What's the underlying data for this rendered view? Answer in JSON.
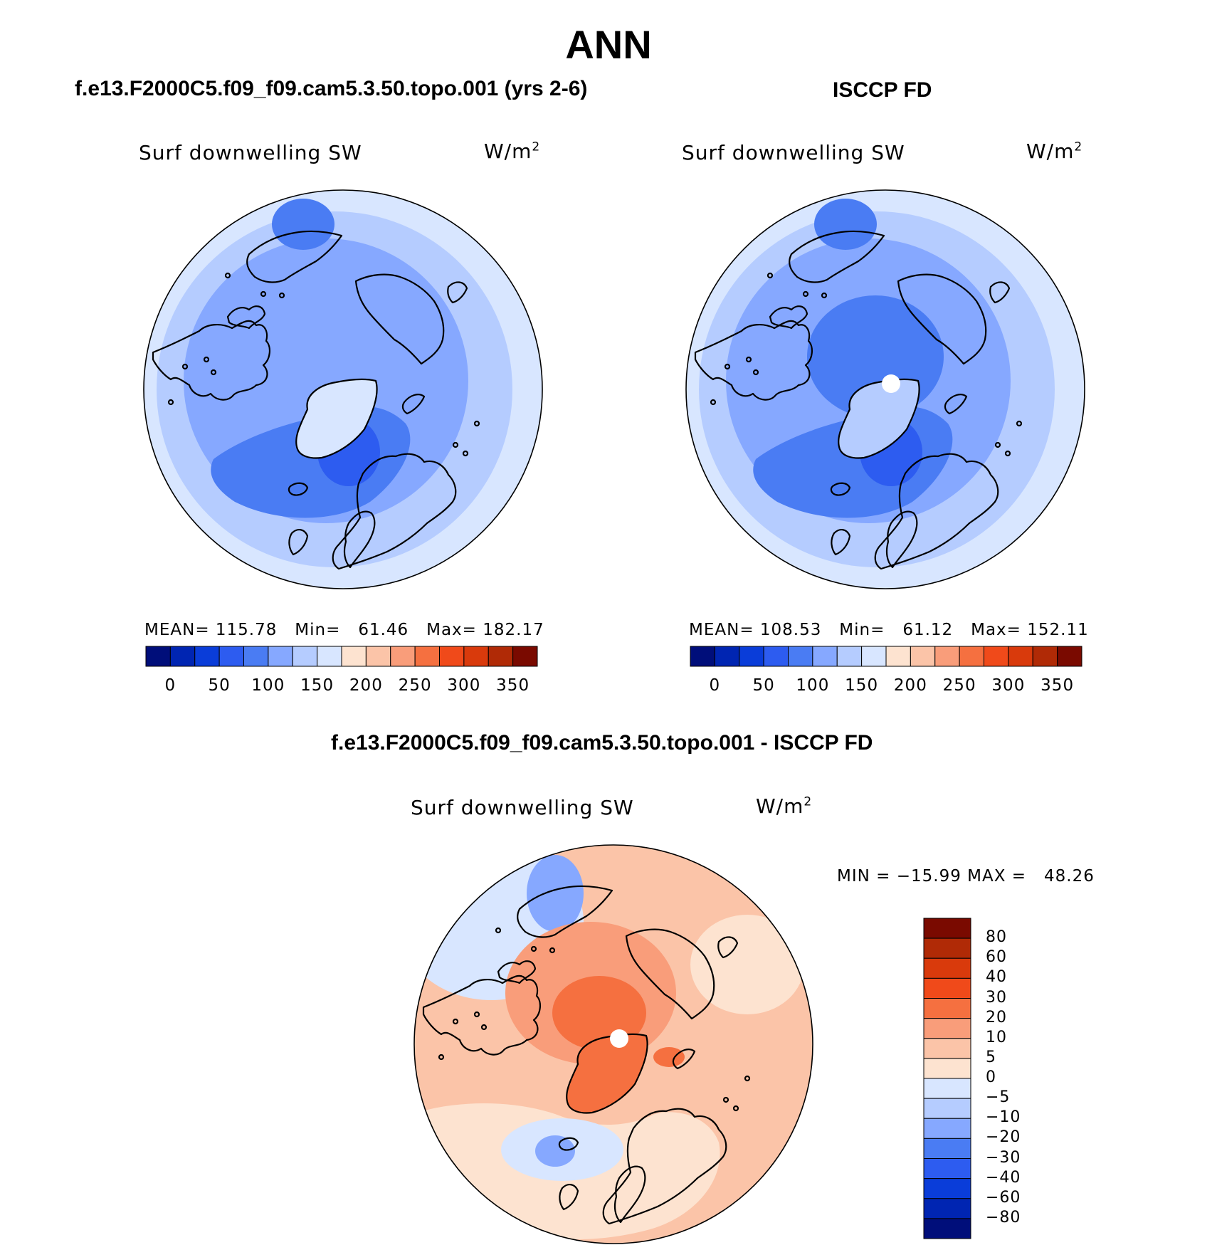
{
  "title": "ANN",
  "panels": [
    {
      "id": "model",
      "header": "f.e13.F2000C5.f09_f09.cam5.3.50.topo.001 (yrs 2-6)",
      "variable": "Surf downwelling SW",
      "units": "W/m",
      "units_sup": "2",
      "stats": "MEAN= 115.78   Min=   61.46   Max= 182.17",
      "colorbar_ticks": [
        "0",
        "50",
        "100",
        "150",
        "200",
        "250",
        "300",
        "350"
      ],
      "pole_missing": false,
      "field": {
        "base": "#86a8ff",
        "outer_ring": "#b5ccff",
        "edge_ring": "#d8e6ff",
        "atlantic": "#4a7cf3",
        "atlantic_core": "#2d5cf0",
        "greenland": "#d8e6ff",
        "central_arctic": "#86a8ff"
      }
    },
    {
      "id": "obs",
      "header": "ISCCP FD",
      "variable": "Surf downwelling SW",
      "units": "W/m",
      "units_sup": "2",
      "stats": "MEAN= 108.53   Min=   61.12   Max= 152.11",
      "colorbar_ticks": [
        "0",
        "50",
        "100",
        "150",
        "200",
        "250",
        "300",
        "350"
      ],
      "pole_missing": true,
      "field": {
        "base": "#86a8ff",
        "outer_ring": "#b5ccff",
        "edge_ring": "#d8e6ff",
        "atlantic": "#4a7cf3",
        "atlantic_core": "#2d5cf0",
        "greenland": "#b5ccff",
        "central_arctic": "#4a7cf3"
      }
    }
  ],
  "colorbar_colors": [
    "#000e7a",
    "#0025b2",
    "#0a3dd9",
    "#2d5cf0",
    "#4a7cf3",
    "#86a8ff",
    "#b5ccff",
    "#d8e6ff",
    "#fde3d0",
    "#fbc4a8",
    "#f99d7a",
    "#f57040",
    "#f04a1a",
    "#d93a0c",
    "#b02a06",
    "#7a0a00"
  ],
  "difference": {
    "header": "f.e13.F2000C5.f09_f09.cam5.3.50.topo.001 - ISCCP FD",
    "variable": "Surf downwelling SW",
    "units": "W/m",
    "units_sup": "2",
    "stats": "MIN = −15.99 MAX =   48.26",
    "colorbar_ticks": [
      "80",
      "60",
      "40",
      "30",
      "20",
      "10",
      "5",
      "0",
      "−5",
      "−10",
      "−20",
      "−30",
      "−40",
      "−60",
      "−80"
    ],
    "colorbar_colors": [
      "#7a0a00",
      "#b02a06",
      "#d93a0c",
      "#f04a1a",
      "#f57040",
      "#f99d7a",
      "#fbc4a8",
      "#fde3d0",
      "#d8e6ff",
      "#b5ccff",
      "#86a8ff",
      "#4a7cf3",
      "#2d5cf0",
      "#0a3dd9",
      "#0025b2",
      "#000e7a"
    ],
    "pole_missing": true
  }
}
